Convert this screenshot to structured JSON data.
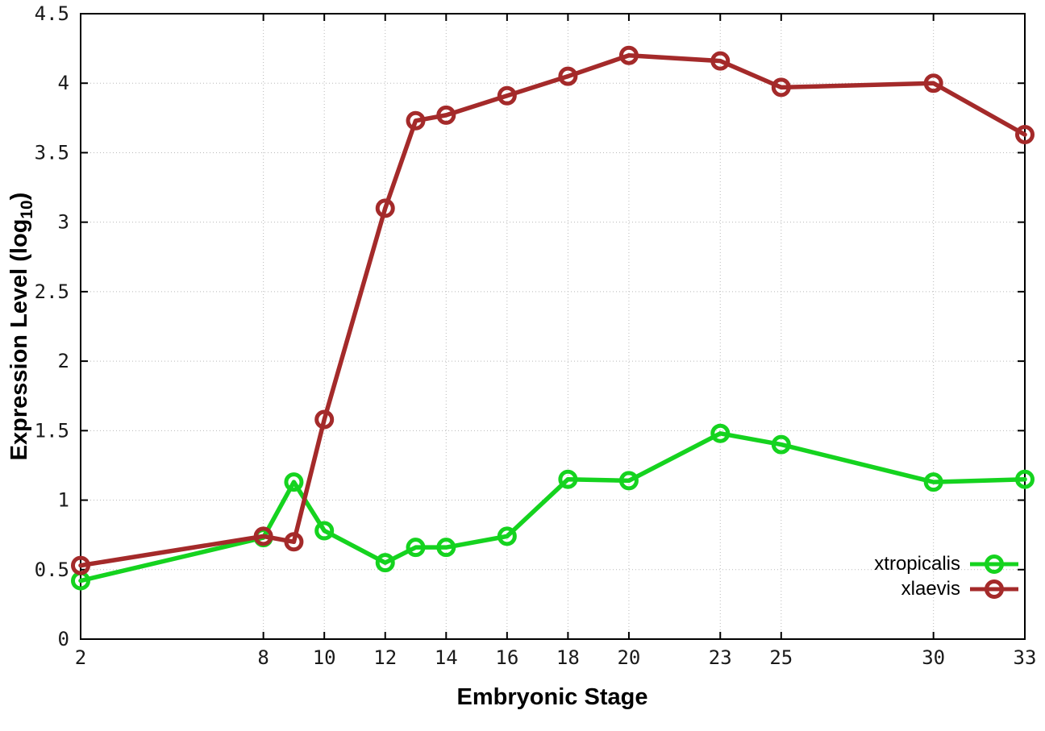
{
  "figure": {
    "background": "#ffffff",
    "axis_color": "#000000",
    "grid_color": "#b8b8b8"
  },
  "chart_data": {
    "type": "line",
    "title": "",
    "xlabel": "Embryonic Stage",
    "ylabel_prefix": "Expression Level (log",
    "ylabel_sub": "10",
    "ylabel_suffix": ")",
    "xlim": [
      2,
      33
    ],
    "ylim": [
      0,
      4.5
    ],
    "x_ticks": [
      2,
      8,
      10,
      12,
      14,
      16,
      18,
      20,
      23,
      25,
      30,
      33
    ],
    "y_ticks": [
      0,
      0.5,
      1,
      1.5,
      2,
      2.5,
      3,
      3.5,
      4,
      4.5
    ],
    "grid": true,
    "legend_position": "bottom-right-inside",
    "x": [
      2,
      8,
      9,
      10,
      12,
      13,
      14,
      16,
      18,
      20,
      23,
      25,
      30,
      33
    ],
    "series": [
      {
        "name": "xtropicalis",
        "color": "#15d31f",
        "values": [
          0.42,
          0.73,
          1.13,
          0.78,
          0.55,
          0.66,
          0.66,
          0.74,
          1.15,
          1.14,
          1.48,
          1.4,
          1.13,
          1.15
        ]
      },
      {
        "name": "xlaevis",
        "color": "#a42a2a",
        "values": [
          0.53,
          0.74,
          0.7,
          1.58,
          3.1,
          3.73,
          3.77,
          3.91,
          4.05,
          4.2,
          4.16,
          3.97,
          4.0,
          3.63
        ]
      }
    ]
  }
}
